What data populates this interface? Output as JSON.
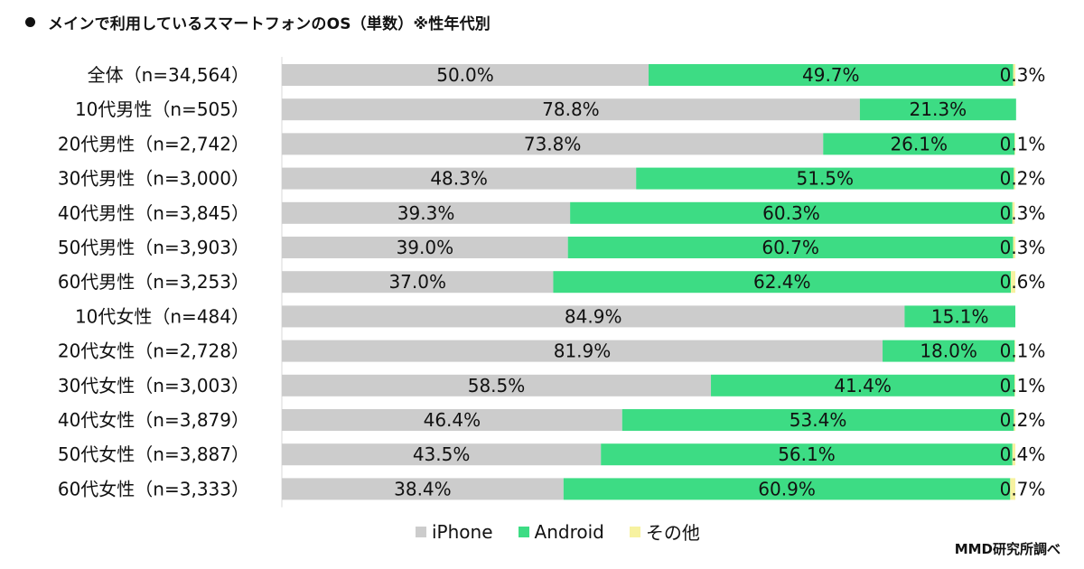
{
  "title": "メインで利用しているスマートフォンのOS（単数）※性年代別",
  "credit": "MMD研究所調べ",
  "colors": {
    "iphone": "#cccccc",
    "android": "#3ddc84",
    "other": "#f7f2a0"
  },
  "legend": [
    "iPhone",
    "Android",
    "その他"
  ],
  "chart_data": {
    "type": "bar",
    "orientation": "horizontal",
    "stacked": "100%",
    "categories": [
      "全体（n=34,564）",
      "10代男性（n=505）",
      "20代男性（n=2,742）",
      "30代男性（n=3,000）",
      "40代男性（n=3,845）",
      "50代男性（n=3,903）",
      "60代男性（n=3,253）",
      "10代女性（n=484）",
      "20代女性（n=2,728）",
      "30代女性（n=3,003）",
      "40代女性（n=3,879）",
      "50代女性（n=3,887）",
      "60代女性（n=3,333）"
    ],
    "series": [
      {
        "name": "iPhone",
        "values": [
          50.0,
          78.8,
          73.8,
          48.3,
          39.3,
          39.0,
          37.0,
          84.9,
          81.9,
          58.5,
          46.4,
          43.5,
          38.4
        ]
      },
      {
        "name": "Android",
        "values": [
          49.7,
          21.3,
          26.1,
          51.5,
          60.3,
          60.7,
          62.4,
          15.1,
          18.0,
          41.4,
          53.4,
          56.1,
          60.9
        ]
      },
      {
        "name": "その他",
        "values": [
          0.3,
          null,
          0.1,
          0.2,
          0.3,
          0.3,
          0.6,
          null,
          0.1,
          0.1,
          0.2,
          0.4,
          0.7
        ]
      }
    ],
    "value_labels": {
      "iPhone": [
        "50.0%",
        "78.8%",
        "73.8%",
        "48.3%",
        "39.3%",
        "39.0%",
        "37.0%",
        "84.9%",
        "81.9%",
        "58.5%",
        "46.4%",
        "43.5%",
        "38.4%"
      ],
      "Android": [
        "49.7%",
        "21.3%",
        "26.1%",
        "51.5%",
        "60.3%",
        "60.7%",
        "62.4%",
        "15.1%",
        "18.0%",
        "41.4%",
        "53.4%",
        "56.1%",
        "60.9%"
      ],
      "その他": [
        "0.3%",
        "",
        "0.1%",
        "0.2%",
        "0.3%",
        "0.3%",
        "0.6%",
        "",
        "0.1%",
        "0.1%",
        "0.2%",
        "0.4%",
        "0.7%"
      ]
    },
    "xlim": [
      0,
      100
    ],
    "grid": false,
    "legend_position": "bottom"
  }
}
